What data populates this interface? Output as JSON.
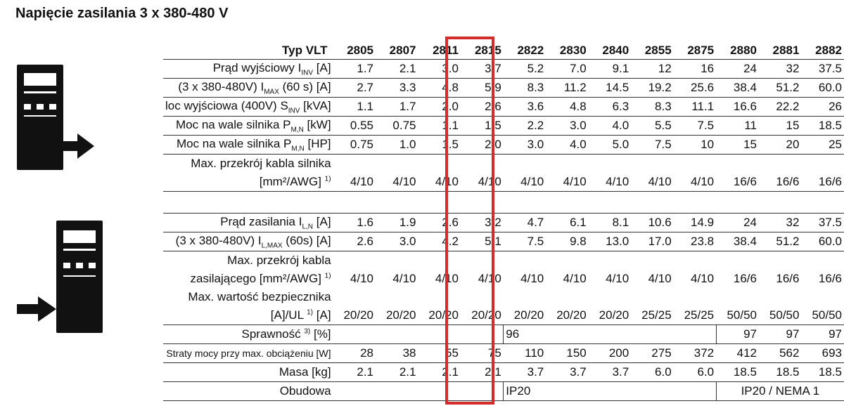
{
  "title": "Napięcie zasilania 3 x 380-480 V",
  "header": {
    "label": "Typ VLT",
    "models": [
      "2805",
      "2807",
      "2811",
      "2815",
      "2822",
      "2830",
      "2840",
      "2855",
      "2875",
      "2880",
      "2881",
      "2882"
    ]
  },
  "highlight_model": "2815",
  "output_section": [
    {
      "label": "Prąd wyjściowy I",
      "sub": "INV",
      "unit": " [A]",
      "values": [
        "1.7",
        "2.1",
        "3.0",
        "3.7",
        "5.2",
        "7.0",
        "9.1",
        "12",
        "16",
        "24",
        "32",
        "37.5"
      ]
    },
    {
      "label": "(3 x 380-480V) I",
      "sub": "MAX",
      "unit": " (60 s) [A]",
      "values": [
        "2.7",
        "3.3",
        "4.8",
        "5.9",
        "8.3",
        "11.2",
        "14.5",
        "19.2",
        "25.6",
        "38.4",
        "51.2",
        "60.0"
      ]
    },
    {
      "label": "loc wyjściowa (400V) S",
      "sub": "INV",
      "unit": " [kVA]",
      "values": [
        "1.1",
        "1.7",
        "2.0",
        "2.6",
        "3.6",
        "4.8",
        "6.3",
        "8.3",
        "11.1",
        "16.6",
        "22.2",
        "26"
      ]
    },
    {
      "label": "Moc na wale silnika P",
      "sub": "M,N",
      "unit": " [kW]",
      "values": [
        "0.55",
        "0.75",
        "1.1",
        "1.5",
        "2.2",
        "3.0",
        "4.0",
        "5.5",
        "7.5",
        "11",
        "15",
        "18.5"
      ]
    },
    {
      "label": "Moc na wale silnika P",
      "sub": "M,N",
      "unit": " [HP]",
      "values": [
        "0.75",
        "1.0",
        "1.5",
        "2.0",
        "3.0",
        "4.0",
        "5.0",
        "7.5",
        "10",
        "15",
        "20",
        "25"
      ]
    }
  ],
  "motor_cable": {
    "line1": "Max. przekrój kabla silnika",
    "line2": "[mm²/AWG]",
    "note": "1)",
    "values": [
      "4/10",
      "4/10",
      "4/10",
      "4/10",
      "4/10",
      "4/10",
      "4/10",
      "4/10",
      "4/10",
      "16/6",
      "16/6",
      "16/6"
    ]
  },
  "input_section": [
    {
      "label": "Prąd zasilania I",
      "sub": "L,N",
      "unit": " [A]",
      "values": [
        "1.6",
        "1.9",
        "2.6",
        "3.2",
        "4.7",
        "6.1",
        "8.1",
        "10.6",
        "14.9",
        "24",
        "32",
        "37.5"
      ]
    },
    {
      "label": "(3 x 380-480V) I",
      "sub": "L,MAX",
      "unit": " (60s) [A]",
      "values": [
        "2.6",
        "3.0",
        "4.2",
        "5.1",
        "7.5",
        "9.8",
        "13.0",
        "17.0",
        "23.8",
        "38.4",
        "51.2",
        "60.0"
      ]
    }
  ],
  "supply_cable": {
    "line1": "Max. przekrój kabla",
    "line2": "zasilającego [mm²/AWG]",
    "note": "1)",
    "values": [
      "4/10",
      "4/10",
      "4/10",
      "4/10",
      "4/10",
      "4/10",
      "4/10",
      "4/10",
      "4/10",
      "16/6",
      "16/6",
      "16/6"
    ]
  },
  "fuse": {
    "line1": "Max. wartość bezpiecznika",
    "line2": "[A]/UL",
    "note": "1)",
    "unit": " [A]",
    "values": [
      "20/20",
      "20/20",
      "20/20",
      "20/20",
      "20/20",
      "20/20",
      "20/20",
      "25/25",
      "25/25",
      "50/50",
      "50/50",
      "50/50"
    ]
  },
  "efficiency": {
    "label": "Sprawność",
    "note": "3)",
    "unit": " [%]",
    "group_value": "96",
    "values_right": [
      "97",
      "97",
      "97"
    ]
  },
  "power_loss": {
    "label": "Straty mocy przy max. obciążeniu [W]",
    "values": [
      "28",
      "38",
      "55",
      "75",
      "110",
      "150",
      "200",
      "275",
      "372",
      "412",
      "562",
      "693"
    ]
  },
  "mass": {
    "label": "Masa [kg]",
    "values": [
      "2.1",
      "2.1",
      "2.1",
      "2.1",
      "3.7",
      "3.7",
      "3.7",
      "6.0",
      "6.0",
      "18.5",
      "18.5",
      "18.5"
    ]
  },
  "enclosure": {
    "label": "Obudowa",
    "group_a": "IP20",
    "group_b": "IP20 / NEMA 1"
  },
  "colors": {
    "highlight": "#d42b2b",
    "device": "#111111"
  }
}
